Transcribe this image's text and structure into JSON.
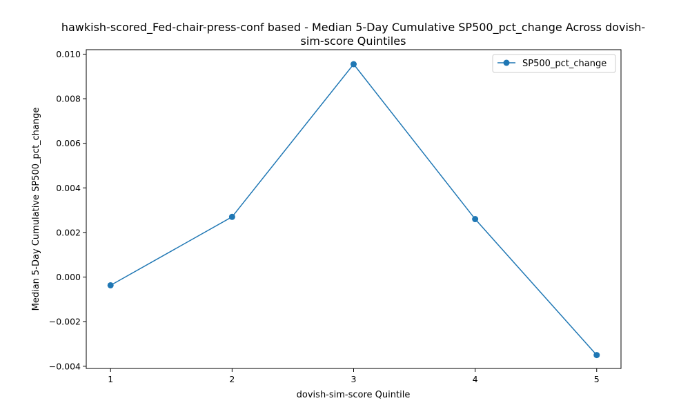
{
  "chart_data": {
    "type": "line",
    "title_lines": [
      "hawkish-scored_Fed-chair-press-conf based - Median 5-Day Cumulative SP500_pct_change Across dovish-",
      "sim-score Quintiles"
    ],
    "xlabel": "dovish-sim-score Quintile",
    "ylabel": "Median 5-Day Cumulative SP500_pct_change",
    "x": [
      1,
      2,
      3,
      4,
      5
    ],
    "x_tick_labels": [
      "1",
      "2",
      "3",
      "4",
      "5"
    ],
    "series": [
      {
        "name": "SP500_pct_change",
        "color": "#1f77b4",
        "marker": "circle",
        "values": [
          -0.00037,
          0.0027,
          0.00955,
          0.0026,
          -0.0035
        ]
      }
    ],
    "xlim": [
      0.8,
      5.2
    ],
    "ylim": [
      -0.0041,
      0.0102
    ],
    "y_ticks": [
      -0.004,
      -0.002,
      0.0,
      0.002,
      0.004,
      0.006,
      0.008,
      0.01
    ],
    "y_tick_labels": [
      "−0.004",
      "−0.002",
      "0.000",
      "0.002",
      "0.004",
      "0.006",
      "0.008",
      "0.010"
    ],
    "grid": false,
    "legend_position": "top-right"
  }
}
